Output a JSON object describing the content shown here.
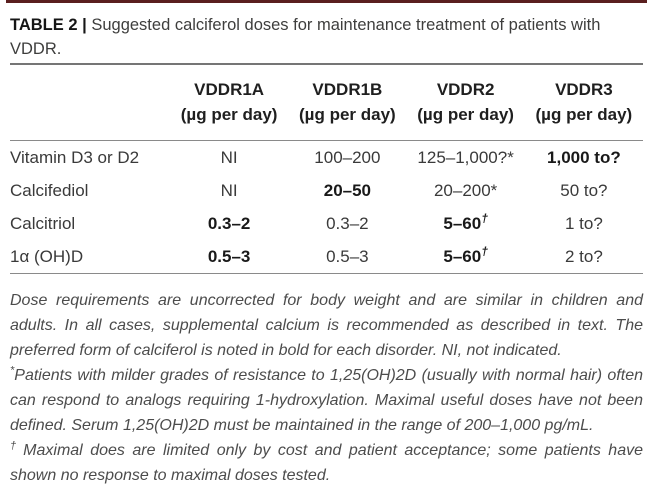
{
  "accent": {
    "top_line_color": "#5a1f1f",
    "rule_color": "#8a8a8a"
  },
  "caption": {
    "label": "TABLE 2",
    "divider": "|",
    "text": "Suggested calciferol doses for maintenance treatment of patients with\nVDDR."
  },
  "table": {
    "columns": [
      {
        "name": "VDDR1A",
        "unit": "(µg per day)"
      },
      {
        "name": "VDDR1B",
        "unit": "(µg per day)"
      },
      {
        "name": "VDDR2",
        "unit": "(µg per day)"
      },
      {
        "name": "VDDR3",
        "unit": "(µg per day)"
      }
    ],
    "rows": [
      {
        "label": "Vitamin D3 or D2",
        "cells": [
          {
            "text": "NI"
          },
          {
            "text": "100–200"
          },
          {
            "text": "125–1,000?*"
          },
          {
            "text": "1,000 to?",
            "bold": true
          }
        ]
      },
      {
        "label": "Calcifediol",
        "cells": [
          {
            "text": "NI"
          },
          {
            "text": "20–50",
            "bold": true
          },
          {
            "text": "20–200*"
          },
          {
            "text": "50 to?"
          }
        ]
      },
      {
        "label": "Calcitriol",
        "cells": [
          {
            "text": "0.3–2",
            "bold": true
          },
          {
            "text": "0.3–2"
          },
          {
            "text": "5–60",
            "sup": "†",
            "bold": true
          },
          {
            "text": "1 to?"
          }
        ]
      },
      {
        "label": "1α (OH)D",
        "cells": [
          {
            "text": "0.5–3",
            "bold": true
          },
          {
            "text": "0.5–3"
          },
          {
            "text": "5–60",
            "sup": "†",
            "bold": true
          },
          {
            "text": "2 to?"
          }
        ]
      }
    ]
  },
  "footnotes": [
    {
      "marker": "",
      "text": "Dose requirements are uncorrected for body weight and are similar in children and adults. In all cases, supplemental calcium is recommended as described in text. The preferred form of calciferol is noted in bold for each disorder. NI, not indicated."
    },
    {
      "marker": "*",
      "text": "Patients with milder grades of resistance to 1,25(OH)2D (usually with normal hair) often can respond to analogs requiring 1-hydroxylation. Maximal useful doses have not been defined. Serum 1,25(OH)2D must be maintained in the range of 200–1,000 pg/mL."
    },
    {
      "marker": "†",
      "text": "Maximal does are limited only by cost and patient acceptance; some patients have shown no response to maximal doses tested."
    }
  ]
}
